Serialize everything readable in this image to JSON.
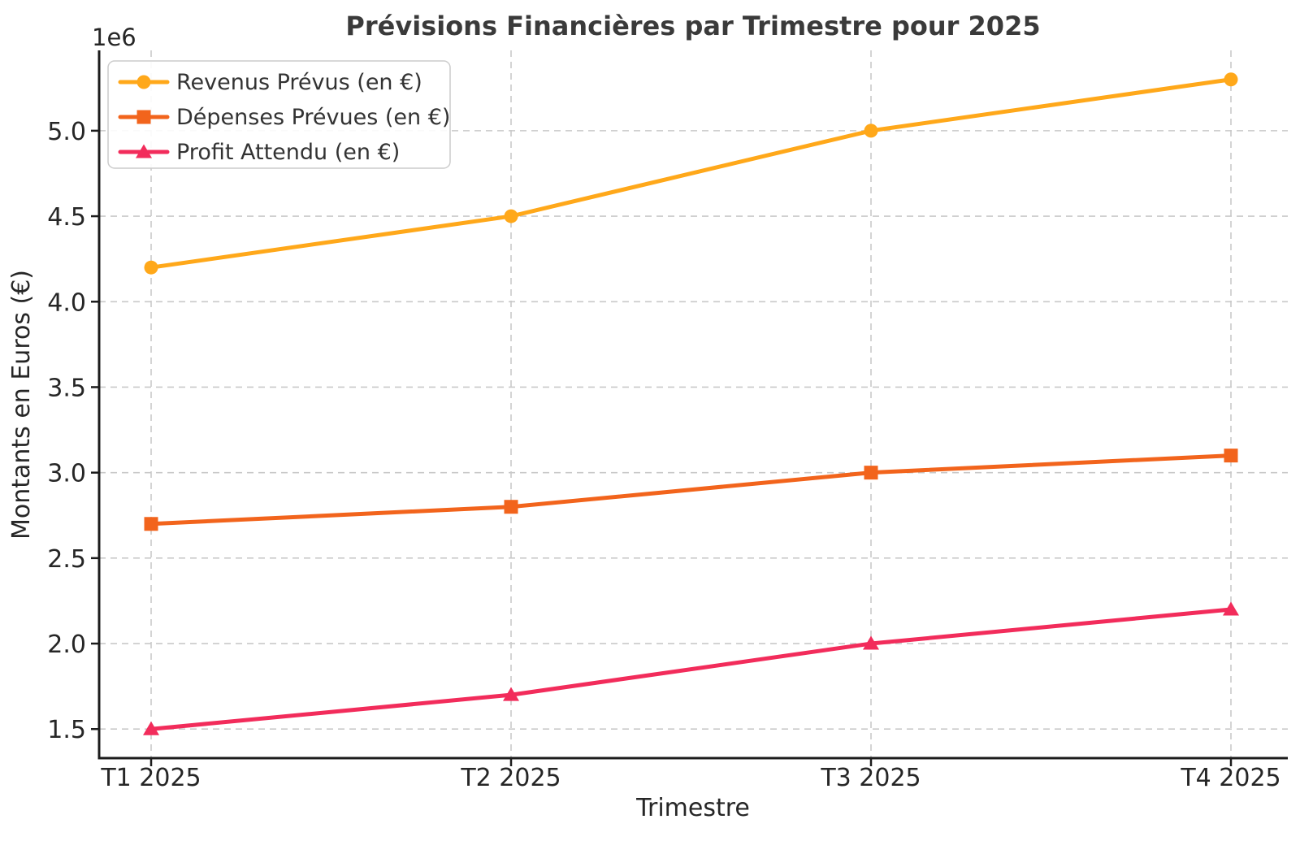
{
  "chart_data": {
    "type": "line",
    "title": "Prévisions Financières par Trimestre pour 2025",
    "xlabel": "Trimestre",
    "ylabel": "Montants en Euros (€)",
    "offset_text": "1e6",
    "categories": [
      "T1 2025",
      "T2 2025",
      "T3 2025",
      "T4 2025"
    ],
    "series": [
      {
        "name": "Revenus Prévus (en €)",
        "values": [
          4200000,
          4500000,
          5000000,
          5300000
        ],
        "color": "#FFA81A",
        "marker": "circle"
      },
      {
        "name": "Dépenses Prévues (en €)",
        "values": [
          2700000,
          2800000,
          3000000,
          3100000
        ],
        "color": "#F2641C",
        "marker": "square"
      },
      {
        "name": "Profit Attendu (en €)",
        "values": [
          1500000,
          1700000,
          2000000,
          2200000
        ],
        "color": "#F22C5B",
        "marker": "triangle"
      }
    ],
    "yticks": [
      1500000,
      2000000,
      2500000,
      3000000,
      3500000,
      4000000,
      4500000,
      5000000
    ],
    "ytick_labels": [
      "1.5",
      "2.0",
      "2.5",
      "3.0",
      "3.5",
      "4.0",
      "4.5",
      "5.0"
    ],
    "ylim": [
      1330000,
      5470000
    ],
    "grid": true,
    "grid_style": "dashed",
    "legend_position": "upper left"
  },
  "colors": {
    "background": "#ffffff",
    "grid": "#c9c9c9",
    "spine": "#1c1c1c",
    "tick": "#1c1c1c",
    "text": "#262626",
    "title": "#3a3a3a",
    "legend_border": "#cccccc",
    "legend_fill": "rgba(255,255,255,0.9)"
  }
}
